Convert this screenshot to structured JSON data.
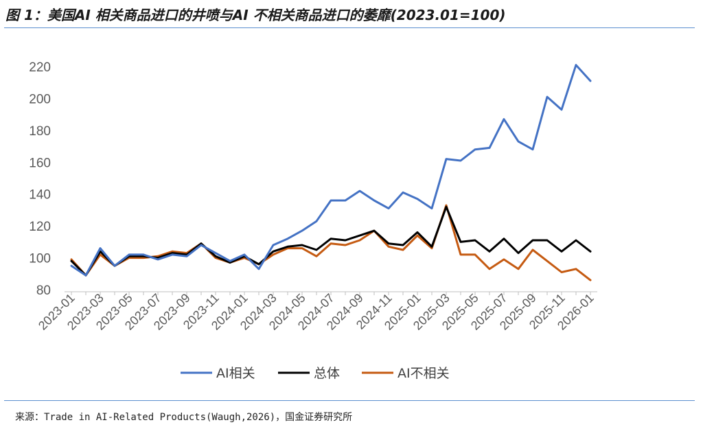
{
  "title": "图 1：美国AI 相关商品进口的井喷与AI 不相关商品进口的萎靡(2023.01=100)",
  "source": "来源：Trade in AI-Related Products(Waugh,2026)，国金证券研究所",
  "chart_data": {
    "type": "line",
    "title": "图 1：美国AI 相关商品进口的井喷与AI 不相关商品进口的萎靡(2023.01=100)",
    "xlabel": "",
    "ylabel": "",
    "ylim": [
      80,
      220
    ],
    "yticks": [
      80,
      100,
      120,
      140,
      160,
      180,
      200,
      220
    ],
    "grid": false,
    "legend_position": "bottom",
    "x": [
      "2023-01",
      "2023-02",
      "2023-03",
      "2023-04",
      "2023-05",
      "2023-06",
      "2023-07",
      "2023-08",
      "2023-09",
      "2023-10",
      "2023-11",
      "2023-12",
      "2024-01",
      "2024-02",
      "2024-03",
      "2024-04",
      "2024-05",
      "2024-06",
      "2024-07",
      "2024-08",
      "2024-09",
      "2024-10",
      "2024-11",
      "2024-12",
      "2025-01",
      "2025-02",
      "2025-03",
      "2025-04",
      "2025-05",
      "2025-06",
      "2025-07",
      "2025-08",
      "2025-09",
      "2025-10",
      "2025-11",
      "2025-12",
      "2026-01"
    ],
    "x_tick_labels": [
      "2023-01",
      "2023-03",
      "2023-05",
      "2023-07",
      "2023-09",
      "2023-11",
      "2024-01",
      "2024-03",
      "2024-05",
      "2024-07",
      "2024-09",
      "2024-11",
      "2025-01",
      "2025-03",
      "2025-05",
      "2025-07",
      "2025-09",
      "2025-11",
      "2026-01"
    ],
    "series": [
      {
        "name": "AI相关",
        "color": "#4472c4",
        "values": [
          95,
          89,
          106,
          95,
          102,
          102,
          99,
          102,
          101,
          108,
          103,
          98,
          102,
          93,
          108,
          112,
          117,
          123,
          136,
          136,
          142,
          136,
          131,
          141,
          137,
          131,
          162,
          161,
          168,
          169,
          187,
          173,
          168,
          201,
          193,
          221,
          211
        ]
      },
      {
        "name": "总体",
        "color": "#000000",
        "values": [
          98,
          89,
          104,
          95,
          101,
          101,
          100,
          103,
          102,
          109,
          101,
          97,
          101,
          96,
          104,
          107,
          108,
          105,
          112,
          111,
          114,
          117,
          109,
          108,
          116,
          107,
          132,
          110,
          111,
          104,
          112,
          103,
          111,
          111,
          104,
          111,
          104
        ]
      },
      {
        "name": "AI不相关",
        "color": "#c55a11",
        "values": [
          99,
          89,
          102,
          95,
          100,
          100,
          101,
          104,
          103,
          109,
          100,
          97,
          100,
          96,
          102,
          106,
          106,
          101,
          109,
          108,
          111,
          117,
          107,
          105,
          114,
          106,
          133,
          102,
          102,
          93,
          99,
          93,
          105,
          98,
          91,
          93,
          86
        ]
      }
    ]
  }
}
